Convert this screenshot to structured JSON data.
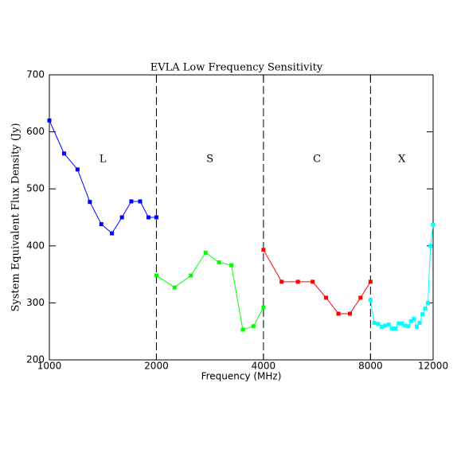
{
  "chart_data": {
    "type": "line",
    "title": "EVLA Low Frequency Sensitivity",
    "xlabel": "Frequency (MHz)",
    "ylabel": "System Equivalent Flux Density (Jy)",
    "xscale": "log",
    "xlim": [
      1000,
      12000
    ],
    "xticks": [
      1000,
      2000,
      4000,
      8000,
      12000
    ],
    "ylim": [
      200,
      700
    ],
    "yticks": [
      200,
      300,
      400,
      500,
      600,
      700
    ],
    "dividers": [
      2000,
      4000,
      8000
    ],
    "series": [
      {
        "name": "L",
        "color": "#0000ff",
        "x": [
          1000,
          1100,
          1200,
          1300,
          1400,
          1500,
          1600,
          1700,
          1800,
          1900,
          2000
        ],
        "values": [
          620,
          562,
          534,
          477,
          438,
          422,
          450,
          478,
          478,
          450,
          450
        ]
      },
      {
        "name": "S",
        "color": "#00ff00",
        "x": [
          2000,
          2250,
          2500,
          2750,
          3000,
          3250,
          3500,
          3750,
          4000
        ],
        "values": [
          348,
          327,
          348,
          388,
          371,
          366,
          253,
          259,
          292
        ]
      },
      {
        "name": "C",
        "color": "#ff0000",
        "x": [
          4000,
          4500,
          5000,
          5500,
          6000,
          6500,
          7000,
          7500,
          8000
        ],
        "values": [
          393,
          337,
          337,
          337,
          309,
          281,
          281,
          309,
          337
        ]
      },
      {
        "name": "X",
        "color": "#00ffff",
        "x": [
          8000,
          8200,
          8400,
          8600,
          8800,
          9000,
          9200,
          9400,
          9600,
          9800,
          10000,
          10200,
          10400,
          10600,
          10800,
          11000,
          11200,
          11400,
          11600,
          11800,
          12000
        ],
        "values": [
          305,
          265,
          263,
          258,
          260,
          262,
          255,
          255,
          264,
          264,
          260,
          259,
          268,
          272,
          258,
          265,
          280,
          290,
          300,
          400,
          437
        ]
      }
    ]
  }
}
